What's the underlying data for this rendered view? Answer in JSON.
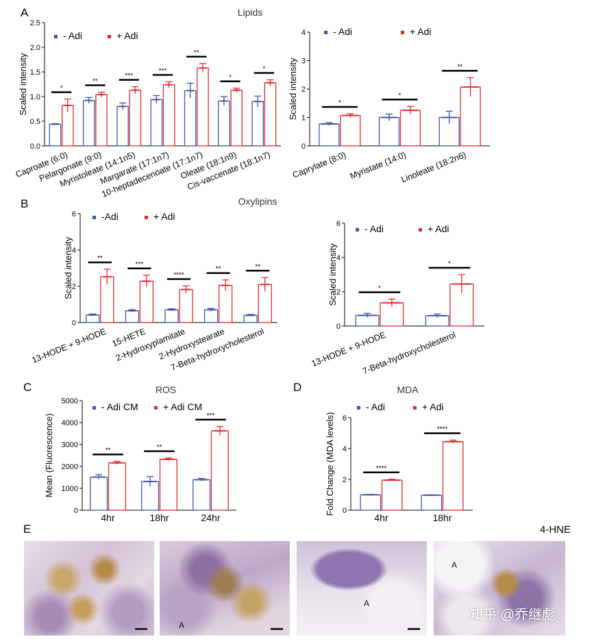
{
  "figure": {
    "panel_letters": [
      "A",
      "B",
      "C",
      "D",
      "E"
    ],
    "histology_label": "4-HNE",
    "histology_marks": [
      "A",
      "A",
      "A"
    ],
    "watermark": "知乎 @乔继彪"
  },
  "chart_data": [
    {
      "id": "A1",
      "type": "bar",
      "title": "Lipids",
      "ylabel": "Scaled intensity",
      "ylim": [
        0,
        2.5
      ],
      "yticks": [
        "0.0",
        "0.5",
        "1.0",
        "1.5",
        "2.0",
        "2.5"
      ],
      "categories": [
        "Caproate (6:0)",
        "Pelargonate (9:0)",
        "Myristoleate (14:1n5)",
        "Margarate (17:1n7)",
        "10-heptadecenoate (17:1n7)",
        "Oleate (18:1n9)",
        "Cis-vaccenate (18:1n7)"
      ],
      "series": [
        {
          "name": "- Adi",
          "color": "#3a55a4",
          "values": [
            0.44,
            0.92,
            0.8,
            0.94,
            1.12,
            0.91,
            0.9
          ],
          "errors": [
            0.01,
            0.06,
            0.07,
            0.08,
            0.15,
            0.09,
            0.11
          ]
        },
        {
          "name": "+ Adi",
          "color": "#e0282e",
          "values": [
            0.82,
            1.04,
            1.13,
            1.24,
            1.58,
            1.13,
            1.28
          ],
          "errors": [
            0.13,
            0.05,
            0.07,
            0.06,
            0.09,
            0.04,
            0.06
          ]
        }
      ],
      "significance": [
        "*",
        "**",
        "***",
        "***",
        "**",
        "*",
        "*"
      ]
    },
    {
      "id": "A2",
      "type": "bar",
      "title": "",
      "ylabel": "Scaled intensity",
      "ylim": [
        0,
        4
      ],
      "yticks": [
        "0",
        "1",
        "2",
        "3",
        "4"
      ],
      "categories": [
        "Caprylate (8:0)",
        "Myristate (14:0)",
        "Linoleate (18:2n6)"
      ],
      "series": [
        {
          "name": "- Adi",
          "color": "#3a55a4",
          "values": [
            0.77,
            1.0,
            1.0
          ],
          "errors": [
            0.05,
            0.12,
            0.22
          ]
        },
        {
          "name": "+ Adi",
          "color": "#e0282e",
          "values": [
            1.07,
            1.25,
            2.07
          ],
          "errors": [
            0.06,
            0.14,
            0.33
          ]
        }
      ],
      "significance": [
        "*",
        "*",
        "**"
      ]
    },
    {
      "id": "B1",
      "type": "bar",
      "title": "Oxylipins",
      "ylabel": "Scaled intensity",
      "ylim": [
        0,
        6
      ],
      "yticks": [
        "0",
        "2",
        "4",
        "6"
      ],
      "categories": [
        "13-HODE + 9-HODE",
        "15-HETE",
        "2-Hydroxyplamitate",
        "2-Hydroxystearate",
        "7-Beta-hydroxycholesterol"
      ],
      "series": [
        {
          "name": "-Adi",
          "color": "#3a55a4",
          "values": [
            0.42,
            0.65,
            0.7,
            0.7,
            0.4
          ],
          "errors": [
            0.05,
            0.06,
            0.06,
            0.08,
            0.05
          ]
        },
        {
          "name": "+ Adi",
          "color": "#e0282e",
          "values": [
            2.52,
            2.28,
            1.82,
            2.05,
            2.1
          ],
          "errors": [
            0.42,
            0.33,
            0.2,
            0.3,
            0.38
          ]
        }
      ],
      "significance": [
        "**",
        "***",
        "****",
        "**",
        "**"
      ]
    },
    {
      "id": "B2",
      "type": "bar",
      "title": "",
      "ylabel": "Scaled intensity",
      "ylim": [
        0,
        6
      ],
      "yticks": [
        "0",
        "2",
        "4",
        "6"
      ],
      "categories": [
        "13-HODE + 9-HODE",
        "7-Beta-hydroxycholesterol"
      ],
      "series": [
        {
          "name": "- Adi",
          "color": "#3a55a4",
          "values": [
            0.62,
            0.6
          ],
          "errors": [
            0.12,
            0.1
          ]
        },
        {
          "name": "+ Adi",
          "color": "#e0282e",
          "values": [
            1.35,
            2.45
          ],
          "errors": [
            0.22,
            0.55
          ]
        }
      ],
      "significance": [
        "*",
        "*"
      ]
    },
    {
      "id": "C",
      "type": "bar",
      "title": "ROS",
      "ylabel": "Mean (Fluorescence)",
      "ylim": [
        0,
        5000
      ],
      "yticks": [
        "0",
        "1000",
        "2000",
        "3000",
        "4000",
        "5000"
      ],
      "categories": [
        "4hr",
        "18hr",
        "24hr"
      ],
      "series": [
        {
          "name": "- Adi CM",
          "color": "#3a55a4",
          "values": [
            1510,
            1310,
            1390
          ],
          "errors": [
            110,
            220,
            60
          ]
        },
        {
          "name": "+ Adi CM",
          "color": "#e0282e",
          "values": [
            2160,
            2320,
            3620
          ],
          "errors": [
            70,
            60,
            200
          ]
        }
      ],
      "significance": [
        "**",
        "**",
        "***"
      ]
    },
    {
      "id": "D",
      "type": "bar",
      "title": "MDA",
      "ylabel": "Fold Change (MDA levels)",
      "ylim": [
        0,
        6
      ],
      "yticks": [
        "0",
        "2",
        "4",
        "6"
      ],
      "categories": [
        "4hr",
        "18hr"
      ],
      "series": [
        {
          "name": "- Adi",
          "color": "#3a55a4",
          "values": [
            1.0,
            0.97
          ],
          "errors": [
            0.03,
            0.03
          ]
        },
        {
          "name": "+ Adi",
          "color": "#e0282e",
          "values": [
            1.95,
            4.45
          ],
          "errors": [
            0.06,
            0.1
          ]
        }
      ],
      "significance": [
        "****",
        "****"
      ]
    }
  ]
}
